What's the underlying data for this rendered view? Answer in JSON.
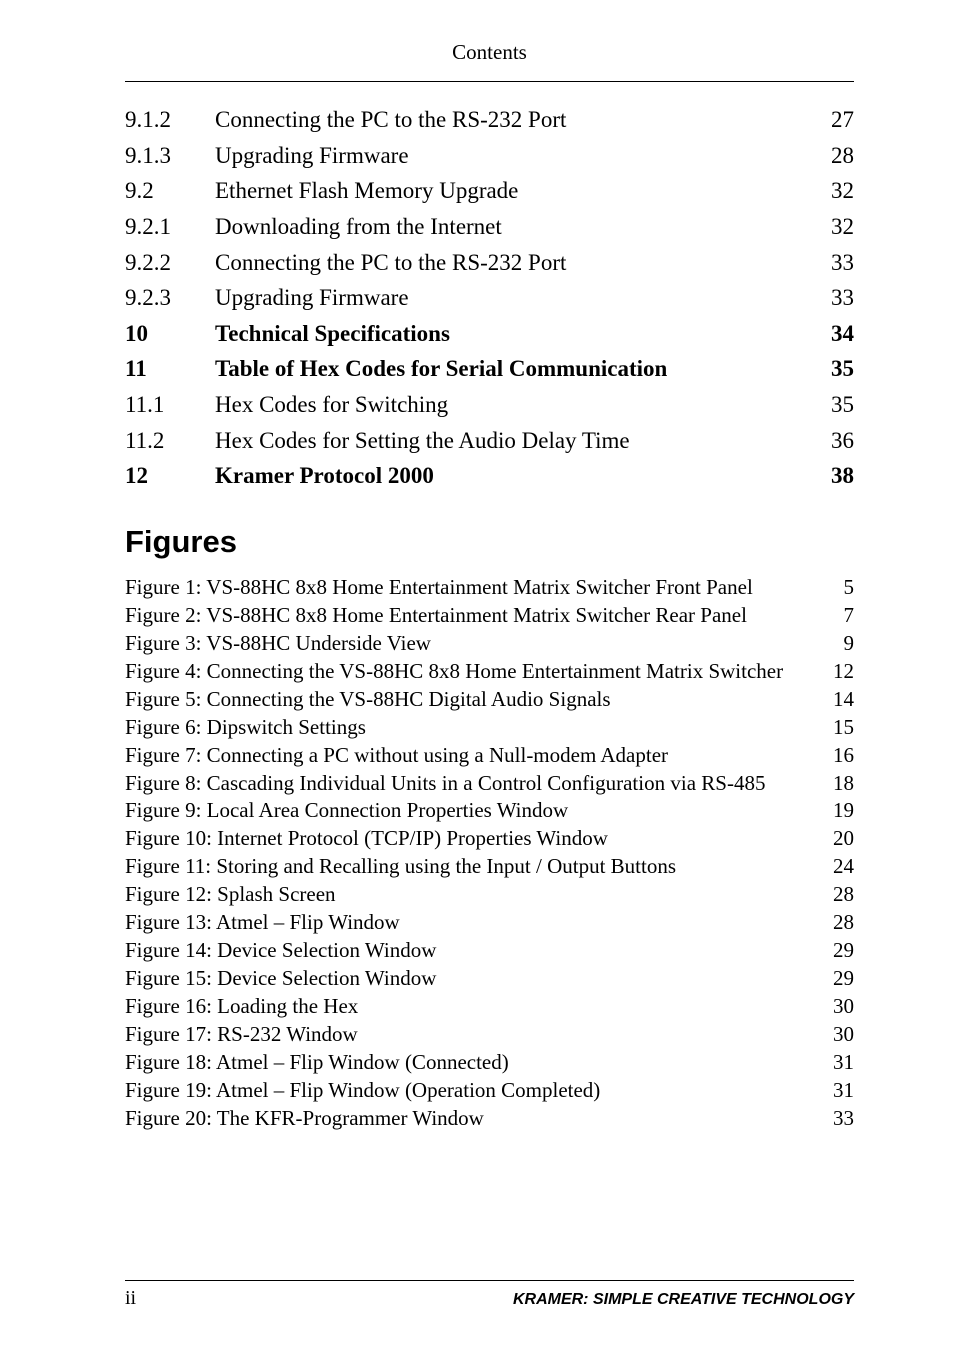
{
  "header": {
    "title": "Contents"
  },
  "toc": [
    {
      "num": "9.1.2",
      "label": "Connecting the PC to the RS-232 Port",
      "page": "27",
      "bold": false
    },
    {
      "num": "9.1.3",
      "label": "Upgrading Firmware",
      "page": "28",
      "bold": false
    },
    {
      "num": "9.2",
      "label": "Ethernet Flash Memory Upgrade",
      "page": "32",
      "bold": false
    },
    {
      "num": "9.2.1",
      "label": "Downloading from the Internet",
      "page": "32",
      "bold": false
    },
    {
      "num": "9.2.2",
      "label": "Connecting the PC to the RS-232 Port",
      "page": "33",
      "bold": false
    },
    {
      "num": "9.2.3",
      "label": "Upgrading Firmware",
      "page": "33",
      "bold": false
    },
    {
      "num": "10",
      "label": "Technical Specifications",
      "page": "34",
      "bold": true
    },
    {
      "num": "11",
      "label": "Table of Hex Codes for Serial Communication",
      "page": "35",
      "bold": true
    },
    {
      "num": "11.1",
      "label": "Hex Codes for Switching",
      "page": "35",
      "bold": false
    },
    {
      "num": "11.2",
      "label": "Hex Codes for Setting the Audio Delay Time",
      "page": "36",
      "bold": false
    },
    {
      "num": "12",
      "label": "Kramer Protocol 2000",
      "page": "38",
      "bold": true
    }
  ],
  "figures_heading": "Figures",
  "figures": [
    {
      "label": "Figure 1: VS-88HC 8x8 Home Entertainment Matrix Switcher Front Panel",
      "page": "5"
    },
    {
      "label": "Figure 2: VS-88HC 8x8 Home Entertainment Matrix Switcher Rear Panel",
      "page": "7"
    },
    {
      "label": "Figure 3: VS-88HC Underside View",
      "page": "9"
    },
    {
      "label": "Figure 4: Connecting the VS-88HC 8x8 Home Entertainment Matrix Switcher",
      "page": "12"
    },
    {
      "label": "Figure 5: Connecting the VS-88HC Digital Audio Signals",
      "page": "14"
    },
    {
      "label": "Figure 6: Dipswitch Settings",
      "page": "15"
    },
    {
      "label": "Figure 7: Connecting a PC without using a Null-modem Adapter",
      "page": "16"
    },
    {
      "label": "Figure 8: Cascading Individual Units in a Control Configuration via RS-485",
      "page": "18"
    },
    {
      "label": "Figure 9: Local Area Connection Properties Window",
      "page": "19"
    },
    {
      "label": "Figure 10: Internet Protocol (TCP/IP) Properties Window",
      "page": "20"
    },
    {
      "label": "Figure 11: Storing and Recalling using the Input / Output Buttons",
      "page": "24"
    },
    {
      "label": "Figure 12: Splash Screen",
      "page": "28"
    },
    {
      "label": "Figure 13: Atmel – Flip Window",
      "page": "28"
    },
    {
      "label": "Figure 14: Device Selection Window",
      "page": "29"
    },
    {
      "label": "Figure 15: Device Selection Window",
      "page": "29"
    },
    {
      "label": "Figure 16: Loading the Hex",
      "page": "30"
    },
    {
      "label": "Figure 17: RS-232 Window",
      "page": "30"
    },
    {
      "label": "Figure 18: Atmel – Flip Window (Connected)",
      "page": "31"
    },
    {
      "label": "Figure 19: Atmel – Flip Window (Operation Completed)",
      "page": "31"
    },
    {
      "label": "Figure 20: The KFR-Programmer Window",
      "page": "33"
    }
  ],
  "footer": {
    "page_number": "ii",
    "brand": "KRAMER:  SIMPLE CREATIVE TECHNOLOGY"
  }
}
